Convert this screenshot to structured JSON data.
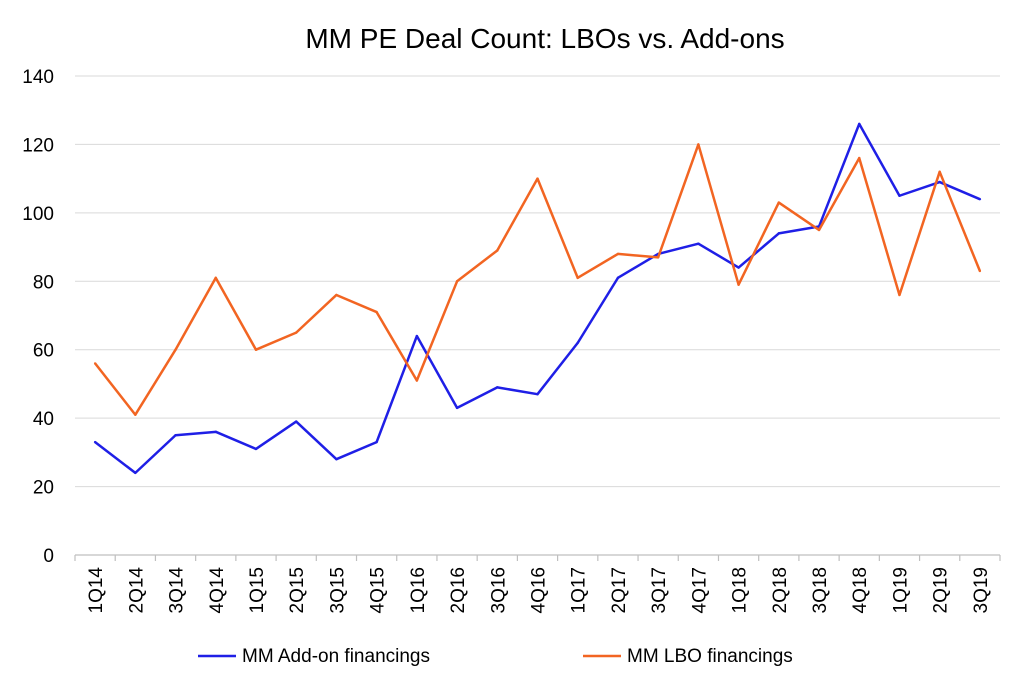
{
  "chart_data": {
    "type": "line",
    "title": "MM PE Deal Count: LBOs vs. Add-ons",
    "xlabel": "",
    "ylabel": "",
    "categories": [
      "1Q14",
      "2Q14",
      "3Q14",
      "4Q14",
      "1Q15",
      "2Q15",
      "3Q15",
      "4Q15",
      "1Q16",
      "2Q16",
      "3Q16",
      "4Q16",
      "1Q17",
      "2Q17",
      "3Q17",
      "4Q17",
      "1Q18",
      "2Q18",
      "3Q18",
      "4Q18",
      "1Q19",
      "2Q19",
      "3Q19"
    ],
    "ylim": [
      0,
      140
    ],
    "yticks": [
      0,
      20,
      40,
      60,
      80,
      100,
      120,
      140
    ],
    "grid": true,
    "legend_position": "bottom",
    "series": [
      {
        "name": "MM Add-on financings",
        "color": "#1f1fe6",
        "values": [
          33,
          24,
          35,
          36,
          31,
          39,
          28,
          33,
          64,
          43,
          49,
          47,
          62,
          81,
          88,
          91,
          84,
          94,
          96,
          126,
          105,
          109,
          104
        ]
      },
      {
        "name": "MM LBO financings",
        "color": "#f26522",
        "values": [
          56,
          41,
          60,
          81,
          60,
          65,
          76,
          71,
          51,
          80,
          89,
          110,
          81,
          88,
          87,
          120,
          79,
          103,
          95,
          116,
          76,
          112,
          83
        ]
      }
    ]
  }
}
